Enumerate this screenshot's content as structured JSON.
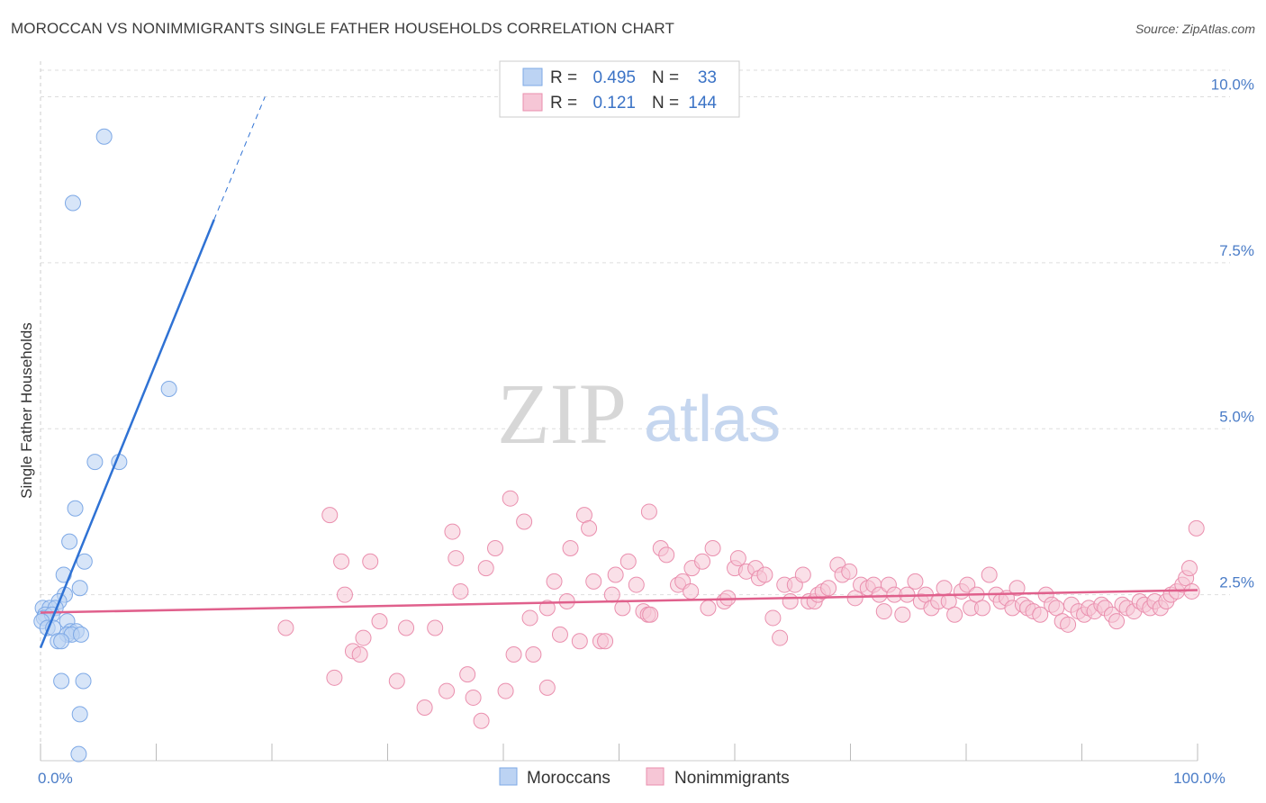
{
  "title": "MOROCCAN VS NONIMMIGRANTS SINGLE FATHER HOUSEHOLDS CORRELATION CHART",
  "source": "Source: ZipAtlas.com",
  "watermark": {
    "zip": "ZIP",
    "atlas": "atlas"
  },
  "colors": {
    "blue": "#7ea9e6",
    "blue_fill": "#bcd3f3",
    "blue_line": "#2f72d4",
    "pink": "#ea8fae",
    "pink_fill": "#f6c6d6",
    "pink_line": "#e0608c",
    "tick": "#4a7cc7",
    "grid": "#dddddd"
  },
  "legend_top": [
    {
      "r_label": "R = ",
      "r_value": "0.495",
      "n_label": "N = ",
      "n_value": "33"
    },
    {
      "r_label": "R = ",
      "r_value": "0.121",
      "n_label": "N = ",
      "n_value": "144"
    }
  ],
  "legend_bottom": [
    "Moroccans",
    "Nonimmigrants"
  ],
  "chart_data": {
    "type": "scatter",
    "title": "MOROCCAN VS NONIMMIGRANTS SINGLE FATHER HOUSEHOLDS CORRELATION CHART",
    "xlabel": "",
    "ylabel": "Single Father Households",
    "xlim": [
      0,
      100
    ],
    "ylim": [
      0,
      10.4
    ],
    "x_tick_labels": [
      {
        "v": 0,
        "label": "0.0%"
      },
      {
        "v": 100,
        "label": "100.0%"
      }
    ],
    "y_ticks": [
      {
        "v": 2.5,
        "label": "2.5%"
      },
      {
        "v": 5.0,
        "label": "5.0%"
      },
      {
        "v": 7.5,
        "label": "7.5%"
      },
      {
        "v": 10.0,
        "label": "10.0%"
      }
    ],
    "x_minor_ticks": [
      0,
      10,
      20,
      30,
      40,
      50,
      60,
      70,
      80,
      90,
      100
    ],
    "series": [
      {
        "name": "Moroccans",
        "r": 0.495,
        "n": 33,
        "trend": {
          "x0": 0,
          "y0": 1.7,
          "x1": 15,
          "y1": 8.15,
          "dash_x1": 19.4,
          "dash_y1": 10.0
        },
        "points": [
          [
            5.5,
            9.4
          ],
          [
            2.8,
            8.4
          ],
          [
            11.1,
            5.6
          ],
          [
            4.7,
            4.5
          ],
          [
            6.8,
            4.5
          ],
          [
            3.0,
            3.8
          ],
          [
            2.5,
            3.3
          ],
          [
            3.8,
            3.0
          ],
          [
            2.0,
            2.8
          ],
          [
            3.4,
            2.6
          ],
          [
            2.1,
            2.5
          ],
          [
            1.6,
            2.4
          ],
          [
            0.2,
            2.3
          ],
          [
            0.8,
            2.3
          ],
          [
            1.3,
            2.3
          ],
          [
            0.4,
            2.2
          ],
          [
            0.3,
            2.15
          ],
          [
            1.0,
            2.2
          ],
          [
            0.1,
            2.1
          ],
          [
            2.3,
            2.1
          ],
          [
            0.6,
            2.0
          ],
          [
            1.1,
            2.0
          ],
          [
            2.6,
            1.95
          ],
          [
            3.1,
            1.95
          ],
          [
            2.3,
            1.9
          ],
          [
            2.7,
            1.9
          ],
          [
            3.5,
            1.9
          ],
          [
            1.5,
            1.8
          ],
          [
            1.8,
            1.8
          ],
          [
            1.8,
            1.2
          ],
          [
            3.7,
            1.2
          ],
          [
            3.4,
            0.7
          ],
          [
            3.3,
            0.1
          ]
        ]
      },
      {
        "name": "Nonimmigrants",
        "r": 0.121,
        "n": 144,
        "trend": {
          "x0": 0,
          "y0": 2.23,
          "x1": 100,
          "y1": 2.57
        },
        "points": [
          [
            25.0,
            3.7
          ],
          [
            26.0,
            3.0
          ],
          [
            28.5,
            3.0
          ],
          [
            26.3,
            2.5
          ],
          [
            21.2,
            2.0
          ],
          [
            27.9,
            1.85
          ],
          [
            29.3,
            2.1
          ],
          [
            31.6,
            2.0
          ],
          [
            34.1,
            2.0
          ],
          [
            25.4,
            1.25
          ],
          [
            27.0,
            1.65
          ],
          [
            27.6,
            1.6
          ],
          [
            30.8,
            1.2
          ],
          [
            33.2,
            0.8
          ],
          [
            35.1,
            1.05
          ],
          [
            35.6,
            3.45
          ],
          [
            35.9,
            3.05
          ],
          [
            36.3,
            2.55
          ],
          [
            36.9,
            1.3
          ],
          [
            37.4,
            0.95
          ],
          [
            38.1,
            0.6
          ],
          [
            38.5,
            2.9
          ],
          [
            39.3,
            3.2
          ],
          [
            40.6,
            3.95
          ],
          [
            40.2,
            1.05
          ],
          [
            40.9,
            1.6
          ],
          [
            41.8,
            3.6
          ],
          [
            42.3,
            2.15
          ],
          [
            42.6,
            1.6
          ],
          [
            43.8,
            1.1
          ],
          [
            43.8,
            2.3
          ],
          [
            44.4,
            2.7
          ],
          [
            44.9,
            1.9
          ],
          [
            45.5,
            2.4
          ],
          [
            45.8,
            3.2
          ],
          [
            46.6,
            1.8
          ],
          [
            47.0,
            3.7
          ],
          [
            47.4,
            3.5
          ],
          [
            47.8,
            2.7
          ],
          [
            48.4,
            1.8
          ],
          [
            48.8,
            1.8
          ],
          [
            49.4,
            2.5
          ],
          [
            49.7,
            2.8
          ],
          [
            50.3,
            2.3
          ],
          [
            50.8,
            3.0
          ],
          [
            51.5,
            2.65
          ],
          [
            52.1,
            2.25
          ],
          [
            52.5,
            2.2
          ],
          [
            52.7,
            2.2
          ],
          [
            52.6,
            3.75
          ],
          [
            53.6,
            3.2
          ],
          [
            54.1,
            3.1
          ],
          [
            55.1,
            2.65
          ],
          [
            55.5,
            2.7
          ],
          [
            56.2,
            2.55
          ],
          [
            56.3,
            2.9
          ],
          [
            57.2,
            3.0
          ],
          [
            57.7,
            2.3
          ],
          [
            58.1,
            3.2
          ],
          [
            59.1,
            2.4
          ],
          [
            59.4,
            2.45
          ],
          [
            60.0,
            2.9
          ],
          [
            60.3,
            3.05
          ],
          [
            61.0,
            2.85
          ],
          [
            61.8,
            2.9
          ],
          [
            62.1,
            2.75
          ],
          [
            62.6,
            2.8
          ],
          [
            63.3,
            2.15
          ],
          [
            63.9,
            1.85
          ],
          [
            64.3,
            2.65
          ],
          [
            64.8,
            2.4
          ],
          [
            65.2,
            2.65
          ],
          [
            65.9,
            2.8
          ],
          [
            66.4,
            2.4
          ],
          [
            66.9,
            2.4
          ],
          [
            67.2,
            2.5
          ],
          [
            67.6,
            2.55
          ],
          [
            68.1,
            2.6
          ],
          [
            68.9,
            2.95
          ],
          [
            69.3,
            2.8
          ],
          [
            69.9,
            2.85
          ],
          [
            70.4,
            2.45
          ],
          [
            70.9,
            2.65
          ],
          [
            71.5,
            2.6
          ],
          [
            72.0,
            2.65
          ],
          [
            72.5,
            2.5
          ],
          [
            72.9,
            2.25
          ],
          [
            73.3,
            2.65
          ],
          [
            73.8,
            2.5
          ],
          [
            74.5,
            2.2
          ],
          [
            74.9,
            2.5
          ],
          [
            75.6,
            2.7
          ],
          [
            76.1,
            2.4
          ],
          [
            76.5,
            2.5
          ],
          [
            77.0,
            2.3
          ],
          [
            77.6,
            2.4
          ],
          [
            78.1,
            2.6
          ],
          [
            78.5,
            2.4
          ],
          [
            79.0,
            2.2
          ],
          [
            79.6,
            2.55
          ],
          [
            80.1,
            2.65
          ],
          [
            80.4,
            2.3
          ],
          [
            80.9,
            2.5
          ],
          [
            81.4,
            2.3
          ],
          [
            82.0,
            2.8
          ],
          [
            82.6,
            2.5
          ],
          [
            83.0,
            2.4
          ],
          [
            83.5,
            2.45
          ],
          [
            84.0,
            2.3
          ],
          [
            84.4,
            2.6
          ],
          [
            84.9,
            2.35
          ],
          [
            85.3,
            2.3
          ],
          [
            85.8,
            2.25
          ],
          [
            86.4,
            2.2
          ],
          [
            86.9,
            2.5
          ],
          [
            87.4,
            2.35
          ],
          [
            87.8,
            2.3
          ],
          [
            88.3,
            2.1
          ],
          [
            88.8,
            2.05
          ],
          [
            89.1,
            2.35
          ],
          [
            89.7,
            2.25
          ],
          [
            90.2,
            2.2
          ],
          [
            90.6,
            2.3
          ],
          [
            91.1,
            2.25
          ],
          [
            91.7,
            2.35
          ],
          [
            92.0,
            2.3
          ],
          [
            92.6,
            2.2
          ],
          [
            93.0,
            2.1
          ],
          [
            93.5,
            2.35
          ],
          [
            93.9,
            2.3
          ],
          [
            94.5,
            2.25
          ],
          [
            95.0,
            2.4
          ],
          [
            95.4,
            2.35
          ],
          [
            95.9,
            2.3
          ],
          [
            96.3,
            2.4
          ],
          [
            96.8,
            2.3
          ],
          [
            97.3,
            2.4
          ],
          [
            97.7,
            2.5
          ],
          [
            98.2,
            2.55
          ],
          [
            98.7,
            2.65
          ],
          [
            99.0,
            2.75
          ],
          [
            99.5,
            2.55
          ],
          [
            99.3,
            2.9
          ],
          [
            99.9,
            3.5
          ]
        ]
      }
    ]
  }
}
